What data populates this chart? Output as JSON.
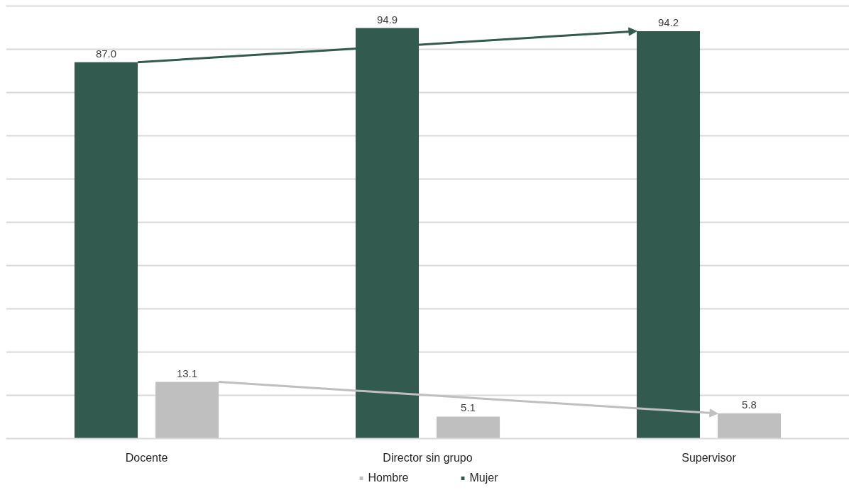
{
  "chart_data": {
    "type": "bar",
    "categories": [
      "Docente",
      "Director sin grupo",
      "Supervisor"
    ],
    "series": [
      {
        "name": "Mujer",
        "color": "#335a4f",
        "values": [
          87.0,
          94.9,
          94.2
        ],
        "value_labels": [
          "87.0",
          "94.9",
          "94.2"
        ]
      },
      {
        "name": "Hombre",
        "color": "#bfbfbf",
        "values": [
          13.1,
          5.1,
          5.8
        ],
        "value_labels": [
          "13.1",
          "5.1",
          "5.8"
        ]
      }
    ],
    "ylim": [
      0,
      100
    ],
    "yticks": [
      {
        "value": 0,
        "label": null
      },
      {
        "value": 10,
        "label": null
      },
      {
        "value": 20,
        "label": null
      },
      {
        "value": 30,
        "label": null
      },
      {
        "value": 40,
        "label": null
      },
      {
        "value": 50,
        "label": null
      },
      {
        "value": 60,
        "label": null
      },
      {
        "value": 70,
        "label": null
      },
      {
        "value": 80,
        "label": null
      },
      {
        "value": 90,
        "label": null
      },
      {
        "value": 100,
        "label": null
      }
    ],
    "tick_labels": "x",
    "grid": "y",
    "legend": "bottom"
  }
}
